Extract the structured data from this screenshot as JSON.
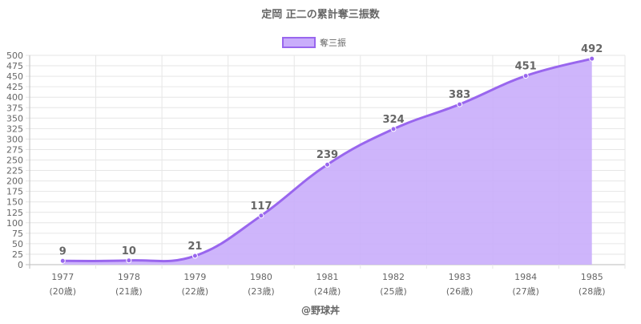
{
  "chart_data": {
    "type": "area",
    "title": "定岡 正二の累計奪三振数",
    "categories": [
      "1977",
      "1978",
      "1979",
      "1980",
      "1981",
      "1982",
      "1983",
      "1984",
      "1985"
    ],
    "sublabels": [
      "(20歳)",
      "(21歳)",
      "(22歳)",
      "(23歳)",
      "(24歳)",
      "(25歳)",
      "(26歳)",
      "(27歳)",
      "(28歳)"
    ],
    "series": [
      {
        "name": "奪三振",
        "values": [
          9,
          10,
          21,
          117,
          239,
          324,
          383,
          451,
          492
        ]
      }
    ],
    "ylim": [
      0,
      500
    ],
    "ytick_step": 25,
    "grid": true,
    "legend": "top-center",
    "line_color": "#9966ee",
    "fill_color": "#c9adfb",
    "credit": "@野球丼"
  }
}
